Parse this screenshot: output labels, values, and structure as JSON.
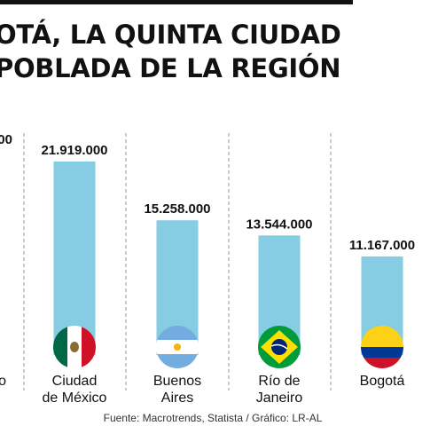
{
  "header": {
    "title_line1": "OTÁ, LA QUINTA CIUDAD",
    "title_line2": "POBLADA DE LA REGIÓN"
  },
  "colors": {
    "bar": "#86CCE2",
    "divider": "#999999",
    "text": "#111111"
  },
  "chart_data": {
    "type": "bar",
    "title": "OTÁ, LA QUINTA CIUDAD POBLADA DE LA REGIÓN",
    "categories": [
      "o",
      "Ciudad de México",
      "Buenos Aires",
      "Río de Janeiro",
      "Bogotá"
    ],
    "category_lines": [
      [
        "o"
      ],
      [
        "Ciudad",
        "de México"
      ],
      [
        "Buenos",
        "Aires"
      ],
      [
        "Río de",
        "Janeiro"
      ],
      [
        "Bogotá"
      ]
    ],
    "values": [
      null,
      21919000,
      15258000,
      13544000,
      11167000
    ],
    "value_labels": [
      "000",
      "21.919.000",
      "15.258.000",
      "13.544.000",
      "11.167.000"
    ],
    "flags": [
      "",
      "mexico-flag",
      "argentina-flag",
      "brazil-flag",
      "colombia-flag"
    ],
    "ylim": [
      0,
      21919000
    ],
    "grid": false,
    "legend": "none",
    "xlabel": "",
    "ylabel": ""
  },
  "footer": {
    "source": "Fuente: Macrotrends, Statista / Gráfico: LR-AL"
  }
}
